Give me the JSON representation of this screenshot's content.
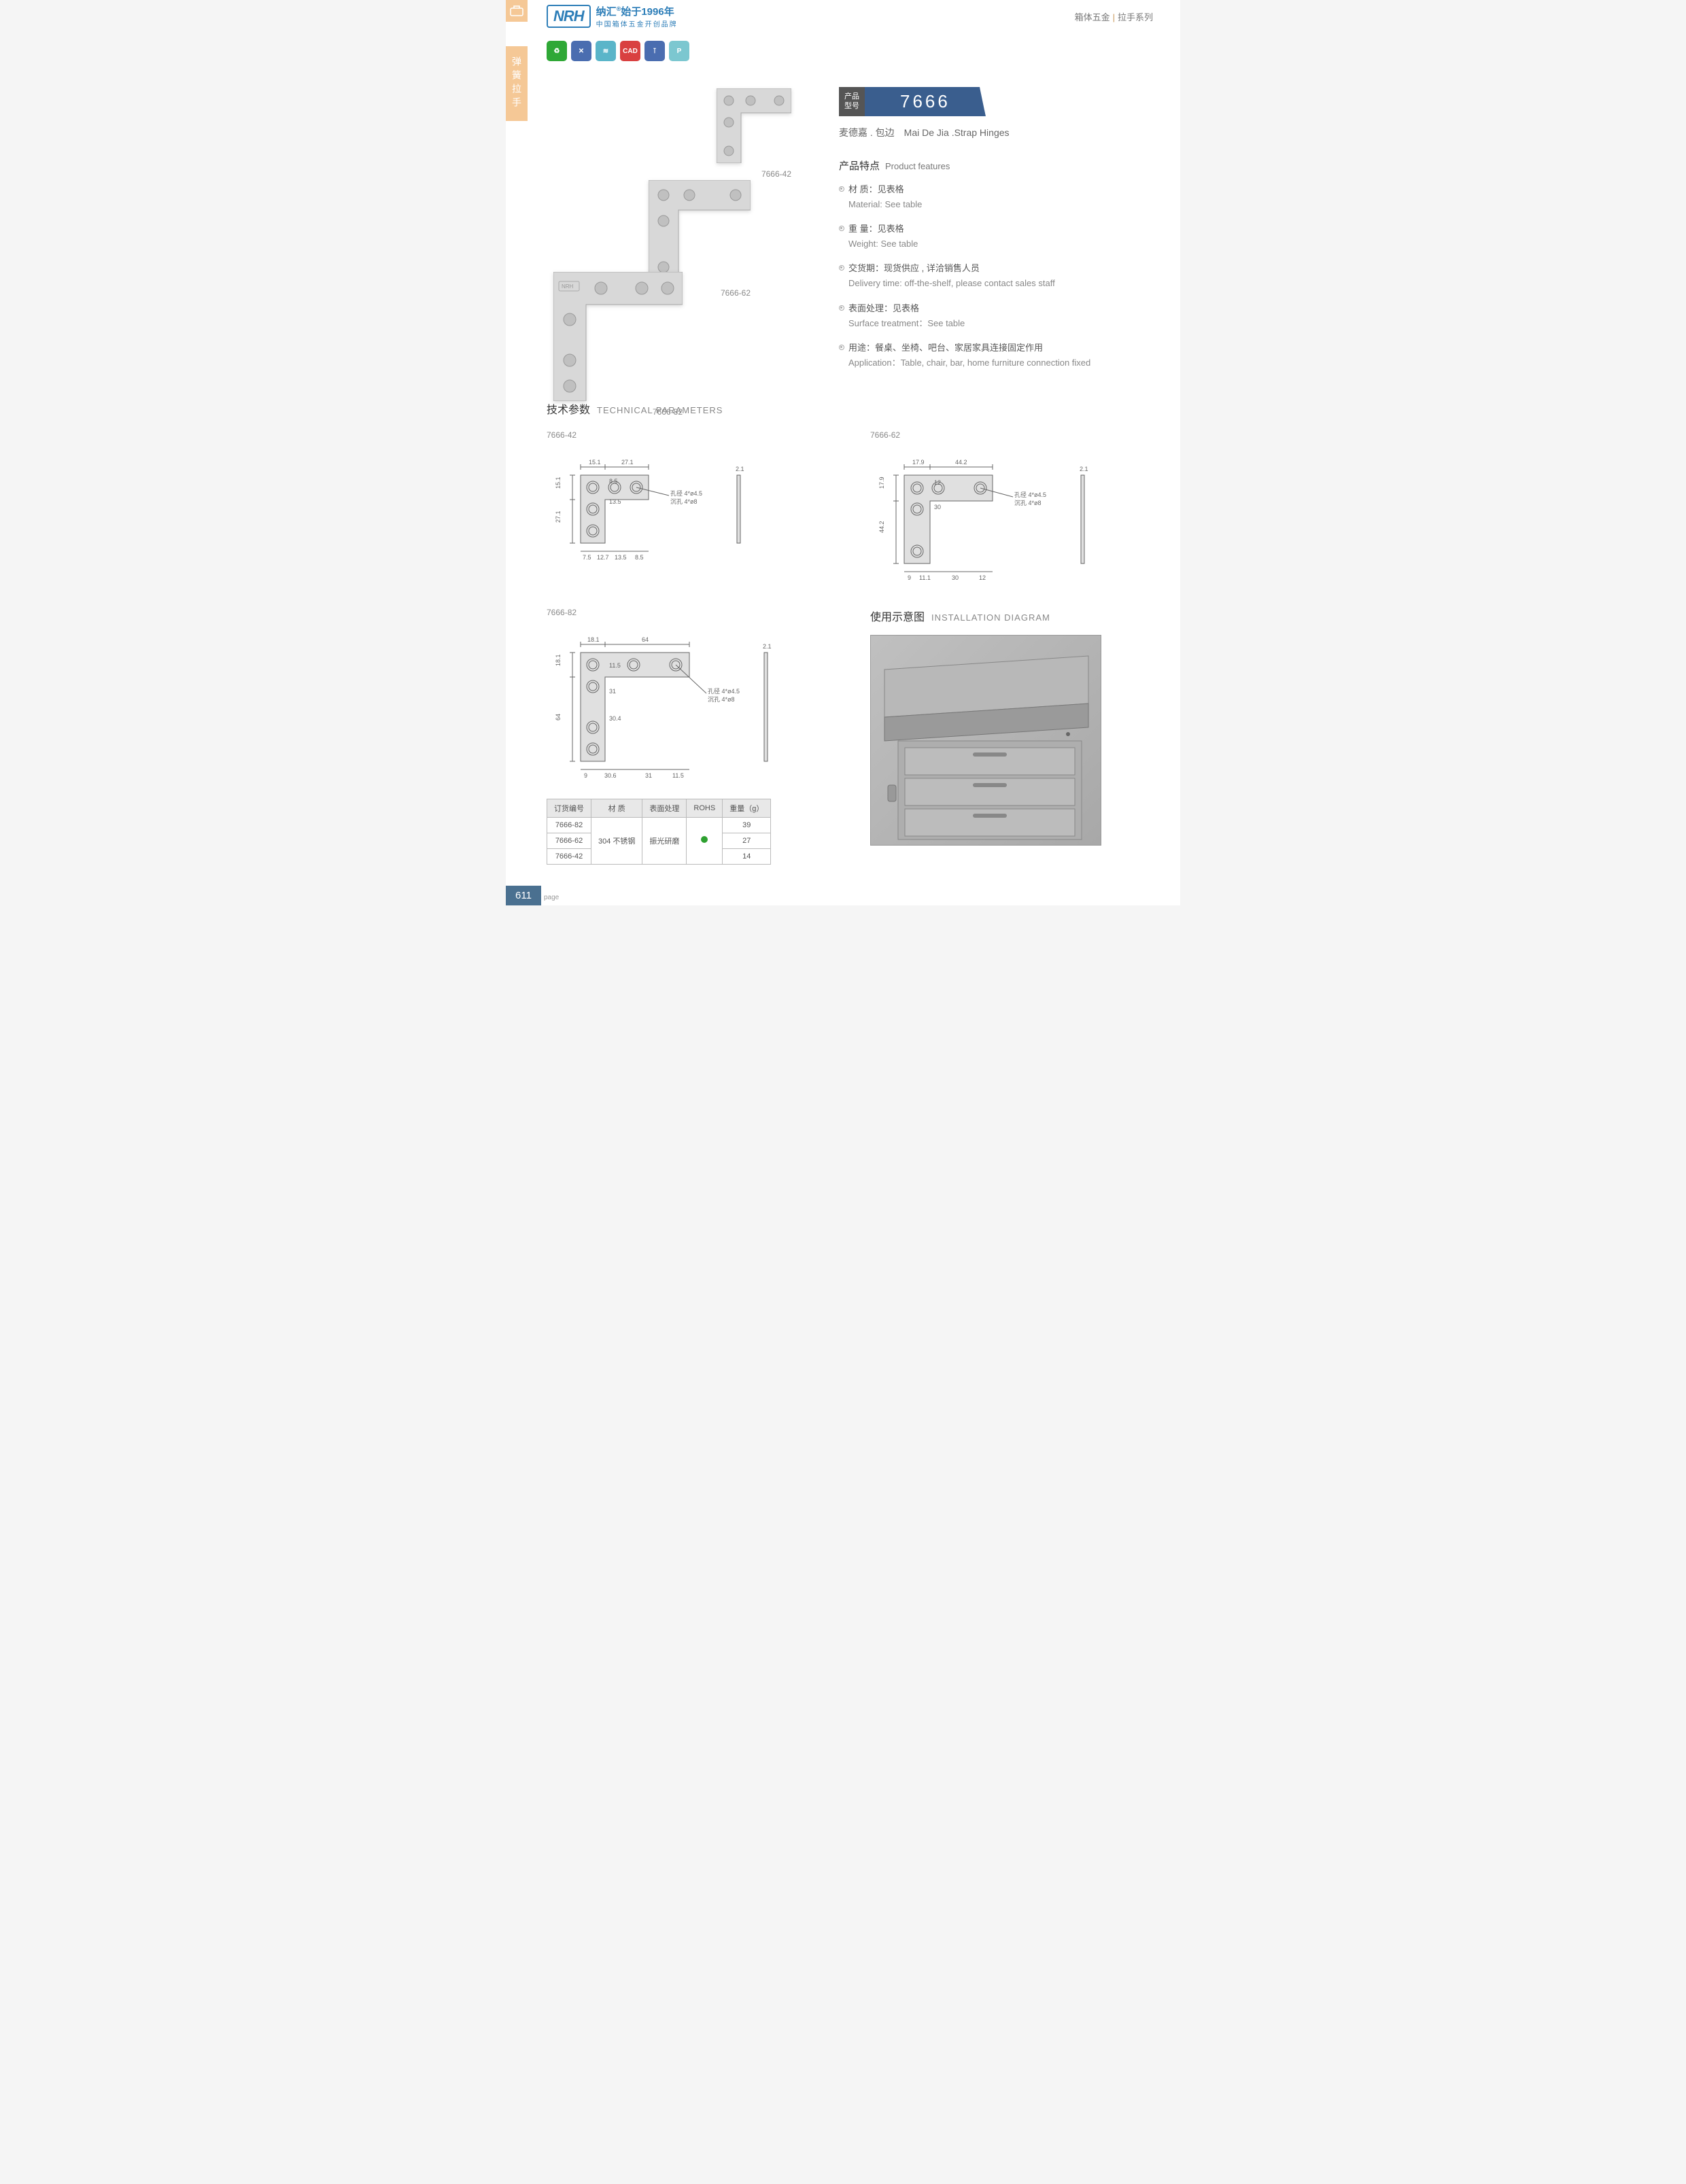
{
  "header": {
    "logo": "NRH",
    "brand_cn": "纳汇",
    "brand_year": "始于1996年",
    "brand_slogan": "中国箱体五金开创品牌",
    "category_cn": "箱体五金",
    "subcategory_cn": "拉手系列"
  },
  "side_tab": "弹簧拉手",
  "icons": [
    {
      "bg": "#2fa836",
      "glyph": "♻"
    },
    {
      "bg": "#4a6db0",
      "glyph": "✕"
    },
    {
      "bg": "#5ab5c9",
      "glyph": "≋"
    },
    {
      "bg": "#d94040",
      "glyph": "CAD"
    },
    {
      "bg": "#4a6db0",
      "glyph": "⊺"
    },
    {
      "bg": "#7cc7d0",
      "glyph": "P"
    }
  ],
  "product": {
    "model_label_cn1": "产品",
    "model_label_cn2": "型号",
    "model_number": "7666",
    "name_cn": "麦德嘉 . 包边",
    "name_en": "Mai De Jia .Strap Hinges",
    "variants": [
      "7666-42",
      "7666-62",
      "7666-82"
    ]
  },
  "features": {
    "title_cn": "产品特点",
    "title_en": "Product features",
    "items": [
      {
        "cn": "材  质：见表格",
        "en": "Material: See table"
      },
      {
        "cn": "重  量：见表格",
        "en": "Weight: See table"
      },
      {
        "cn": "交货期：现货供应 , 详洽销售人员",
        "en": "Delivery time: off-the-shelf, please contact sales staff"
      },
      {
        "cn": "表面处理：见表格",
        "en": "Surface treatment：See table"
      },
      {
        "cn": "用途：餐桌、坐椅、吧台、家居家具连接固定作用",
        "en": "Application：Table, chair, bar, home furniture connection fixed"
      }
    ]
  },
  "tech": {
    "title_cn": "技术参数",
    "title_en": "TECHNICAL PARAMETERS",
    "d42": {
      "label": "7666-42",
      "w1": "15.1",
      "w2": "27.1",
      "h1": "27.1",
      "h2": "15.1",
      "b1": "7.5",
      "b2": "12.7",
      "b3": "13.5",
      "b4": "8.5",
      "v1": "8.5",
      "v2": "13.5",
      "t": "2.1",
      "hole1": "孔径 4*ø4.5",
      "hole2": "沉孔 4*ø8"
    },
    "d62": {
      "label": "7666-62",
      "w1": "17.9",
      "w2": "44.2",
      "h1": "44.2",
      "h2": "17.9",
      "b1": "9",
      "b2": "11.1",
      "b3": "30",
      "b4": "12",
      "v1": "12",
      "v2": "30",
      "t": "2.1",
      "hole1": "孔径 4*ø4.5",
      "hole2": "沉孔 4*ø8"
    },
    "d82": {
      "label": "7666-82",
      "w1": "18.1",
      "w2": "64",
      "h1": "64",
      "h2": "18.1",
      "b1": "9",
      "b2": "30.6",
      "b3": "31",
      "b4": "11.5",
      "v1": "11.5",
      "v2": "31",
      "v3": "30.4",
      "t": "2.1",
      "hole1": "孔径 4*ø4.5",
      "hole2": "沉孔 4*ø8"
    }
  },
  "install": {
    "title_cn": "使用示意图",
    "title_en": "INSTALLATION DIAGRAM"
  },
  "table": {
    "headers": [
      "订货编号",
      "材  质",
      "表面处理",
      "ROHS",
      "重量（g）"
    ],
    "material": "304 不锈钢",
    "surface": "振光研磨",
    "rows": [
      {
        "code": "7666-82",
        "weight": "39"
      },
      {
        "code": "7666-62",
        "weight": "27"
      },
      {
        "code": "7666-42",
        "weight": "14"
      }
    ]
  },
  "page_number": "611",
  "page_label": "page"
}
